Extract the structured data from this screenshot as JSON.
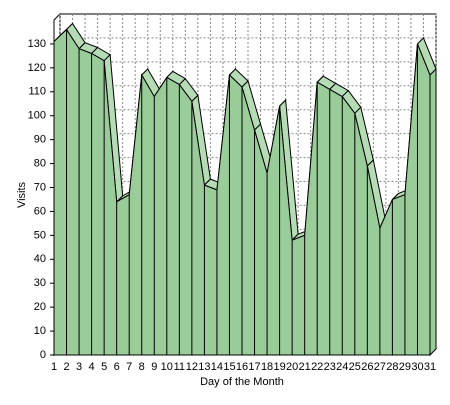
{
  "chart_data": {
    "type": "area3d",
    "x_label": "Day of the Month",
    "y_label": "Visits",
    "categories": [
      "1",
      "2",
      "3",
      "4",
      "5",
      "6",
      "7",
      "8",
      "9",
      "10",
      "11",
      "12",
      "13",
      "14",
      "15",
      "16",
      "17",
      "18",
      "19",
      "20",
      "21",
      "22",
      "23",
      "24",
      "25",
      "26",
      "27",
      "28",
      "29",
      "30",
      "31"
    ],
    "values": [
      131,
      136,
      128,
      126,
      123,
      64,
      67,
      117,
      108,
      116,
      113,
      106,
      71,
      69,
      117,
      112,
      94,
      76,
      104,
      48,
      50,
      114,
      111,
      108,
      101,
      79,
      53,
      65,
      67,
      130,
      117
    ],
    "color": "#99cc99",
    "top_color": "#b5dcb5",
    "ylim": [
      0,
      140
    ],
    "yticks": [
      0,
      10,
      20,
      30,
      40,
      50,
      60,
      70,
      80,
      90,
      100,
      110,
      120,
      130
    ],
    "grid": true
  }
}
